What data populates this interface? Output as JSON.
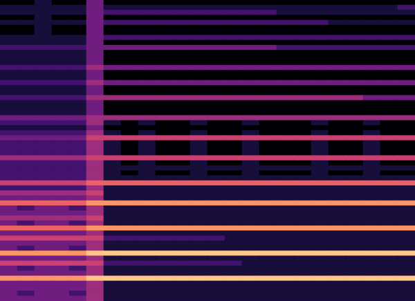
{
  "chart_data": {
    "type": "heatmap",
    "tick_labels": false,
    "zlim": [
      0,
      9
    ],
    "cells": [
      [
        3,
        3,
        3,
        3,
        3,
        4,
        1,
        1,
        1,
        1,
        1,
        1,
        1,
        1,
        1,
        1,
        1,
        1,
        1,
        1,
        1,
        1,
        1,
        1
      ],
      [
        3,
        2,
        3,
        3,
        2,
        4,
        1,
        1,
        1,
        1,
        1,
        1,
        1,
        1,
        1,
        1,
        1,
        1,
        1,
        1,
        1,
        1,
        1,
        1
      ],
      [
        3,
        3,
        3,
        3,
        3,
        4,
        1,
        1,
        1,
        1,
        1,
        1,
        1,
        1,
        1,
        1,
        1,
        1,
        1,
        1,
        1,
        1,
        1,
        1
      ],
      [
        3,
        3,
        3,
        3,
        3,
        4,
        1,
        1,
        1,
        1,
        1,
        1,
        1,
        1,
        1,
        1,
        1,
        1,
        1,
        1,
        1,
        1,
        1,
        1
      ],
      [
        7,
        7,
        7,
        7,
        7,
        8,
        8,
        8,
        8,
        8,
        8,
        8,
        8,
        8,
        8,
        8,
        8,
        8,
        8,
        8,
        8,
        8,
        8,
        8
      ],
      [
        3,
        3,
        3,
        3,
        3,
        4,
        1,
        1,
        1,
        1,
        1,
        1,
        1,
        1,
        1,
        1,
        1,
        1,
        1,
        1,
        1,
        1,
        1,
        1
      ],
      [
        3,
        2,
        3,
        3,
        2,
        4,
        1,
        1,
        1,
        1,
        1,
        1,
        1,
        1,
        1,
        1,
        1,
        1,
        1,
        1,
        1,
        1,
        1,
        1
      ],
      [
        5,
        5,
        5,
        5,
        5,
        5,
        2,
        2,
        2,
        2,
        2,
        2,
        2,
        2,
        1,
        1,
        1,
        1,
        1,
        1,
        1,
        1,
        1,
        1
      ],
      [
        3,
        3,
        3,
        3,
        3,
        4,
        1,
        1,
        1,
        1,
        1,
        1,
        1,
        1,
        1,
        1,
        1,
        1,
        1,
        1,
        1,
        1,
        1,
        1
      ],
      [
        7,
        7,
        7,
        7,
        7,
        8,
        8,
        8,
        8,
        8,
        8,
        8,
        8,
        8,
        8,
        8,
        8,
        8,
        8,
        8,
        8,
        8,
        8,
        8
      ],
      [
        3,
        2,
        3,
        3,
        2,
        4,
        1,
        1,
        1,
        1,
        1,
        1,
        1,
        1,
        1,
        1,
        1,
        1,
        1,
        1,
        1,
        1,
        1,
        1
      ],
      [
        3,
        3,
        3,
        3,
        3,
        4,
        1,
        1,
        1,
        1,
        1,
        1,
        1,
        1,
        1,
        1,
        1,
        1,
        1,
        1,
        1,
        1,
        1,
        1
      ],
      [
        5,
        5,
        5,
        5,
        5,
        5,
        2,
        2,
        2,
        2,
        2,
        2,
        2,
        1,
        1,
        1,
        1,
        1,
        1,
        1,
        1,
        1,
        1,
        1
      ],
      [
        3,
        3,
        3,
        3,
        3,
        4,
        1,
        1,
        1,
        1,
        1,
        1,
        1,
        1,
        1,
        1,
        1,
        1,
        1,
        1,
        1,
        1,
        1,
        1
      ],
      [
        6,
        6,
        6,
        6,
        6,
        7,
        7,
        7,
        7,
        7,
        7,
        7,
        7,
        7,
        7,
        7,
        7,
        7,
        7,
        7,
        7,
        7,
        7,
        7
      ],
      [
        3,
        2,
        3,
        3,
        2,
        4,
        1,
        1,
        1,
        1,
        1,
        1,
        1,
        1,
        1,
        1,
        1,
        1,
        1,
        1,
        1,
        1,
        1,
        1
      ],
      [
        4,
        4,
        4,
        4,
        4,
        5,
        1,
        1,
        1,
        1,
        1,
        1,
        1,
        1,
        1,
        1,
        1,
        1,
        1,
        1,
        1,
        1,
        1,
        1
      ],
      [
        3,
        3,
        3,
        3,
        3,
        4,
        1,
        1,
        1,
        1,
        1,
        1,
        1,
        1,
        1,
        1,
        1,
        1,
        1,
        1,
        1,
        1,
        1,
        1
      ],
      [
        3,
        2,
        3,
        3,
        2,
        4,
        1,
        1,
        1,
        1,
        1,
        1,
        1,
        1,
        1,
        1,
        1,
        1,
        1,
        1,
        1,
        1,
        1,
        1
      ],
      [
        6,
        6,
        6,
        6,
        6,
        7,
        7,
        7,
        7,
        7,
        7,
        7,
        7,
        7,
        7,
        7,
        7,
        7,
        7,
        7,
        7,
        7,
        7,
        7
      ],
      [
        3,
        3,
        3,
        3,
        3,
        4,
        1,
        1,
        1,
        1,
        1,
        1,
        1,
        1,
        1,
        1,
        1,
        1,
        1,
        1,
        1,
        1,
        1,
        1
      ],
      [
        4,
        4,
        4,
        4,
        4,
        5,
        1,
        1,
        1,
        1,
        1,
        1,
        1,
        1,
        1,
        1,
        1,
        1,
        1,
        1,
        1,
        1,
        1,
        1
      ],
      [
        2,
        2,
        2,
        2,
        2,
        4,
        1,
        1,
        1,
        1,
        1,
        1,
        1,
        1,
        1,
        1,
        1,
        1,
        1,
        1,
        1,
        1,
        1,
        1
      ],
      [
        5,
        5,
        5,
        5,
        5,
        6,
        6,
        6,
        6,
        6,
        6,
        6,
        6,
        6,
        6,
        6,
        6,
        6,
        6,
        6,
        6,
        6,
        6,
        6
      ],
      [
        2,
        2,
        2,
        2,
        2,
        4,
        1,
        1,
        1,
        1,
        1,
        1,
        1,
        1,
        1,
        1,
        1,
        1,
        1,
        1,
        1,
        1,
        1,
        1
      ],
      [
        2,
        2,
        2,
        2,
        2,
        4,
        1,
        0,
        1,
        0,
        0,
        1,
        0,
        0,
        1,
        0,
        0,
        0,
        1,
        0,
        0,
        1,
        0,
        0
      ],
      [
        2,
        2,
        2,
        2,
        2,
        4,
        1,
        1,
        1,
        1,
        1,
        1,
        1,
        1,
        1,
        1,
        1,
        1,
        1,
        1,
        1,
        1,
        1,
        1
      ],
      [
        2,
        2,
        2,
        2,
        2,
        4,
        1,
        0,
        1,
        0,
        0,
        1,
        0,
        0,
        1,
        0,
        0,
        0,
        1,
        0,
        0,
        1,
        0,
        0
      ],
      [
        4,
        4,
        4,
        4,
        4,
        5,
        5,
        5,
        5,
        5,
        5,
        5,
        5,
        5,
        5,
        5,
        5,
        5,
        5,
        5,
        5,
        5,
        5,
        5
      ],
      [
        2,
        2,
        2,
        2,
        2,
        4,
        1,
        0,
        1,
        0,
        0,
        1,
        0,
        0,
        1,
        0,
        0,
        0,
        1,
        0,
        0,
        1,
        0,
        0
      ],
      [
        2,
        2,
        2,
        2,
        2,
        4,
        1,
        0,
        1,
        0,
        0,
        1,
        0,
        0,
        1,
        0,
        0,
        0,
        1,
        0,
        0,
        1,
        0,
        0
      ],
      [
        2,
        2,
        2,
        2,
        2,
        4,
        1,
        0,
        1,
        0,
        0,
        1,
        0,
        0,
        1,
        0,
        0,
        0,
        1,
        0,
        0,
        1,
        0,
        0
      ],
      [
        3,
        3,
        3,
        3,
        3,
        5,
        5,
        5,
        5,
        5,
        5,
        5,
        5,
        5,
        5,
        5,
        5,
        5,
        5,
        5,
        5,
        5,
        5,
        5
      ],
      [
        2,
        2,
        2,
        2,
        2,
        4,
        1,
        0,
        1,
        0,
        0,
        1,
        0,
        0,
        1,
        0,
        0,
        0,
        1,
        0,
        0,
        1,
        0,
        0
      ],
      [
        1,
        1,
        1,
        1,
        1,
        3,
        0,
        0,
        0,
        0,
        0,
        0,
        0,
        0,
        0,
        0,
        0,
        0,
        0,
        0,
        0,
        0,
        0,
        0
      ],
      [
        2,
        2,
        2,
        2,
        2,
        4,
        1,
        0,
        1,
        0,
        0,
        1,
        0,
        0,
        1,
        0,
        0,
        0,
        1,
        0,
        0,
        1,
        0,
        0
      ],
      [
        3,
        3,
        3,
        3,
        3,
        4,
        4,
        4,
        4,
        4,
        4,
        4,
        4,
        4,
        4,
        4,
        4,
        4,
        4,
        4,
        4,
        4,
        4,
        4
      ],
      [
        1,
        1,
        1,
        1,
        1,
        3,
        0,
        0,
        0,
        0,
        0,
        0,
        0,
        0,
        0,
        0,
        0,
        0,
        0,
        0,
        0,
        0,
        0,
        0
      ],
      [
        1,
        1,
        1,
        1,
        1,
        3,
        0,
        0,
        0,
        0,
        0,
        0,
        0,
        0,
        0,
        0,
        0,
        0,
        0,
        0,
        0,
        0,
        0,
        0
      ],
      [
        1,
        1,
        1,
        1,
        1,
        3,
        0,
        0,
        0,
        0,
        0,
        0,
        0,
        0,
        0,
        0,
        0,
        0,
        0,
        0,
        0,
        0,
        0,
        0
      ],
      [
        2,
        2,
        2,
        2,
        2,
        4,
        4,
        4,
        4,
        4,
        4,
        4,
        4,
        4,
        4,
        4,
        4,
        4,
        4,
        4,
        4,
        3,
        3,
        3
      ],
      [
        1,
        1,
        1,
        1,
        1,
        3,
        0,
        0,
        0,
        0,
        0,
        0,
        0,
        0,
        0,
        0,
        0,
        0,
        0,
        0,
        0,
        0,
        0,
        0
      ],
      [
        1,
        1,
        1,
        1,
        1,
        3,
        0,
        0,
        0,
        0,
        0,
        0,
        0,
        0,
        0,
        0,
        0,
        0,
        0,
        0,
        0,
        0,
        0,
        0
      ],
      [
        2,
        2,
        2,
        2,
        2,
        4,
        3,
        3,
        3,
        3,
        3,
        3,
        3,
        3,
        3,
        3,
        3,
        3,
        3,
        3,
        3,
        3,
        3,
        3
      ],
      [
        1,
        1,
        1,
        1,
        1,
        3,
        0,
        0,
        0,
        0,
        0,
        0,
        0,
        0,
        0,
        0,
        0,
        0,
        0,
        0,
        0,
        0,
        0,
        0
      ],
      [
        1,
        1,
        1,
        1,
        1,
        3,
        0,
        0,
        0,
        0,
        0,
        0,
        0,
        0,
        0,
        0,
        0,
        0,
        0,
        0,
        0,
        0,
        0,
        0
      ],
      [
        2,
        2,
        2,
        2,
        2,
        4,
        3,
        3,
        3,
        3,
        3,
        3,
        3,
        3,
        3,
        3,
        3,
        3,
        3,
        3,
        3,
        3,
        3,
        3
      ],
      [
        1,
        1,
        1,
        1,
        1,
        3,
        0,
        0,
        0,
        0,
        0,
        0,
        0,
        0,
        0,
        0,
        0,
        0,
        0,
        0,
        0,
        0,
        0,
        0
      ],
      [
        1,
        1,
        1,
        1,
        1,
        3,
        0,
        0,
        0,
        0,
        0,
        0,
        0,
        0,
        0,
        0,
        0,
        0,
        0,
        0,
        0,
        0,
        0,
        0
      ],
      [
        1,
        1,
        1,
        1,
        1,
        3,
        0,
        0,
        0,
        0,
        0,
        0,
        0,
        0,
        0,
        0,
        0,
        0,
        0,
        0,
        0,
        0,
        0,
        0
      ],
      [
        2,
        2,
        2,
        2,
        2,
        3,
        3,
        3,
        3,
        3,
        3,
        3,
        3,
        3,
        3,
        3,
        2,
        2,
        2,
        2,
        2,
        2,
        2,
        2
      ],
      [
        1,
        1,
        1,
        1,
        1,
        3,
        0,
        0,
        0,
        0,
        0,
        0,
        0,
        0,
        0,
        0,
        0,
        0,
        0,
        0,
        0,
        0,
        0,
        0
      ],
      [
        1,
        1,
        1,
        1,
        1,
        3,
        2,
        2,
        2,
        2,
        2,
        2,
        2,
        2,
        2,
        2,
        2,
        2,
        2,
        2,
        2,
        2,
        2,
        2
      ],
      [
        0,
        0,
        1,
        0,
        0,
        3,
        0,
        0,
        0,
        0,
        0,
        0,
        0,
        0,
        0,
        0,
        0,
        0,
        0,
        0,
        0,
        0,
        0,
        0
      ],
      [
        0,
        0,
        1,
        0,
        0,
        3,
        0,
        0,
        0,
        0,
        0,
        0,
        0,
        0,
        0,
        0,
        0,
        0,
        0,
        0,
        0,
        0,
        0,
        0
      ],
      [
        1,
        1,
        1,
        1,
        1,
        3,
        2,
        2,
        2,
        2,
        2,
        2,
        2,
        2,
        2,
        2,
        2,
        2,
        2,
        1,
        1,
        1,
        1,
        1
      ],
      [
        0,
        0,
        1,
        0,
        0,
        3,
        0,
        0,
        0,
        0,
        0,
        0,
        0,
        0,
        0,
        0,
        0,
        0,
        0,
        0,
        0,
        0,
        0,
        0
      ],
      [
        1,
        1,
        1,
        1,
        1,
        3,
        2,
        2,
        2,
        2,
        2,
        2,
        2,
        2,
        2,
        2,
        1,
        1,
        1,
        1,
        1,
        1,
        1,
        1
      ],
      [
        1,
        1,
        1,
        1,
        1,
        3,
        1,
        1,
        1,
        1,
        1,
        1,
        1,
        1,
        1,
        1,
        1,
        1,
        1,
        1,
        1,
        1,
        1,
        2
      ],
      [
        0,
        0,
        1,
        0,
        0,
        3,
        0,
        0,
        0,
        0,
        0,
        0,
        0,
        0,
        0,
        0,
        0,
        0,
        0,
        0,
        0,
        0,
        0,
        0
      ]
    ]
  }
}
